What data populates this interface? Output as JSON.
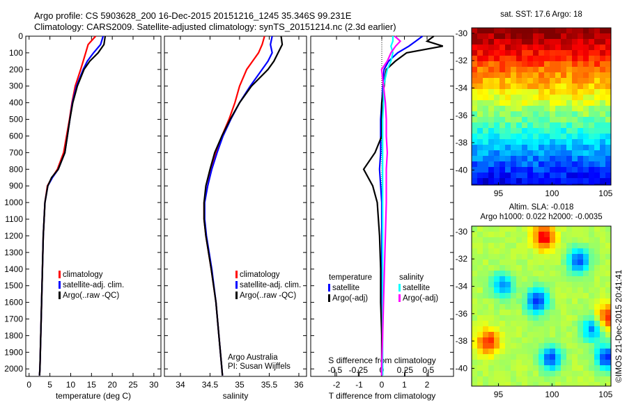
{
  "title_lines": [
    "Argo profile: CS 5903628_200 16-Dec-2015 20151216_1245 35.346S 99.231E",
    "Climatology: CARS2009. Satellite-adjusted climatology: synTS_20151214.nc (2.3d earlier)"
  ],
  "colors": {
    "climatology": "#ff0000",
    "satellite": "#0000ff",
    "argo": "#000000",
    "sal_satellite": "#00ffff",
    "sal_argo": "#ff00ff"
  },
  "chart_data": [
    {
      "type": "line",
      "id": "temperature",
      "xlabel": "temperature (deg C)",
      "xlim": [
        -0.8,
        31.7
      ],
      "ylim": [
        2045,
        0
      ],
      "xticks": [
        0,
        5,
        10,
        15,
        20,
        25,
        30
      ],
      "yticks": [
        0,
        100,
        200,
        300,
        400,
        500,
        600,
        700,
        800,
        900,
        1000,
        1100,
        1200,
        1300,
        1400,
        1500,
        1600,
        1700,
        1800,
        1900,
        2000
      ],
      "depth": [
        0,
        50,
        100,
        150,
        200,
        300,
        400,
        500,
        600,
        700,
        800,
        850,
        900,
        1000,
        1200,
        1400,
        1600,
        1800,
        2000,
        2040
      ],
      "series": [
        {
          "name": "climatology",
          "legend": "climatology",
          "color": "#ff0000",
          "values": [
            16,
            14.2,
            13.6,
            13,
            12.4,
            11.1,
            10.3,
            9.7,
            9.0,
            8.3,
            6.8,
            5.5,
            4.4,
            3.8,
            3.4,
            3.2,
            3.0,
            2.8,
            2.6,
            2.5
          ]
        },
        {
          "name": "satellite",
          "legend": "satellite-adj. clim.",
          "color": "#0000ff",
          "values": [
            17.8,
            17.2,
            15.5,
            14.0,
            13.0,
            11.4,
            10.4,
            9.8,
            9.2,
            8.6,
            7.0,
            5.6,
            4.5,
            3.8,
            3.4,
            3.2,
            3.0,
            2.8,
            2.6,
            2.5
          ]
        },
        {
          "name": "argo",
          "legend": "Argo(..raw -QC)",
          "color": "#000000",
          "values": [
            18.3,
            18.0,
            16.6,
            14.6,
            13.2,
            11.6,
            10.5,
            9.8,
            9.2,
            8.6,
            7.0,
            5.4,
            4.5,
            3.8,
            3.4,
            3.2,
            3.0,
            2.8,
            2.6,
            2.5
          ]
        }
      ]
    },
    {
      "type": "line",
      "id": "salinity",
      "xlabel": "salinity",
      "xlim": [
        33.73,
        36.13
      ],
      "ylim": [
        2045,
        0
      ],
      "xticks": [
        34,
        34.5,
        35,
        35.5,
        36
      ],
      "depth": [
        0,
        50,
        100,
        150,
        200,
        300,
        400,
        500,
        600,
        700,
        800,
        900,
        1000,
        1100,
        1200,
        1400,
        1600,
        1800,
        2000,
        2040
      ],
      "series": [
        {
          "name": "climatology",
          "legend": "climatology",
          "color": "#ff0000",
          "values": [
            35.42,
            35.38,
            35.32,
            35.22,
            35.12,
            35.0,
            34.92,
            34.82,
            34.7,
            34.6,
            34.52,
            34.46,
            34.4,
            34.4,
            34.43,
            34.52,
            34.6,
            34.65,
            34.7,
            34.71
          ]
        },
        {
          "name": "satellite",
          "legend": "satellite-adj. clim.",
          "color": "#0000ff",
          "values": [
            35.55,
            35.52,
            35.55,
            35.48,
            35.38,
            35.18,
            35.0,
            34.85,
            34.72,
            34.62,
            34.53,
            34.46,
            34.41,
            34.41,
            34.44,
            34.53,
            34.6,
            34.65,
            34.7,
            34.71
          ]
        },
        {
          "name": "argo",
          "legend": "Argo(..raw -QC)",
          "color": "#000000",
          "values": [
            35.7,
            35.72,
            35.65,
            35.58,
            35.48,
            35.2,
            35.0,
            34.84,
            34.7,
            34.58,
            34.5,
            34.43,
            34.4,
            34.4,
            34.43,
            34.52,
            34.6,
            34.65,
            34.7,
            34.71
          ]
        }
      ],
      "annotation": [
        "Argo Australia",
        "PI: Susan Wijffels"
      ]
    },
    {
      "type": "line",
      "id": "difference",
      "xlabel": "T difference from climatology",
      "xlabel_top": "S difference from climatology",
      "xlim": [
        -3.14,
        3.17
      ],
      "xticks": [
        -2,
        -1,
        0,
        1,
        2
      ],
      "s_xlim": [
        -0.76,
        0.77
      ],
      "s_xticks": [
        -0.5,
        -0.25,
        0,
        0.25,
        0.5
      ],
      "ylim": [
        2045,
        0
      ],
      "depth": [
        0,
        30,
        60,
        100,
        150,
        200,
        300,
        400,
        500,
        600,
        700,
        800,
        900,
        1000,
        1200,
        1400,
        1600,
        1800,
        2000,
        2040
      ],
      "legend_headers": [
        "temperature",
        "salinity"
      ],
      "series": [
        {
          "name": "t_satellite",
          "legend": "satellite",
          "group": "temperature",
          "color": "#0000ff",
          "scale": "T",
          "values": [
            1.8,
            1.5,
            1.2,
            0.7,
            0.3,
            0.1,
            0.05,
            0.0,
            -0.05,
            -0.05,
            -0.05,
            -0.1,
            -0.05,
            0.0,
            0.0,
            0.0,
            0.0,
            0.0,
            0.0,
            0.0
          ]
        },
        {
          "name": "t_argo",
          "legend": "Argo(-adj)",
          "group": "temperature",
          "color": "#000000",
          "scale": "T",
          "values": [
            2.3,
            2.0,
            2.7,
            1.1,
            0.6,
            0.2,
            0.1,
            0.0,
            0.0,
            0.0,
            -0.3,
            -0.8,
            -0.4,
            -0.2,
            -0.1,
            -0.05,
            -0.05,
            0.0,
            0.0,
            0.0
          ]
        },
        {
          "name": "s_satellite",
          "legend": "satellite",
          "group": "salinity",
          "color": "#00ffff",
          "scale": "S",
          "values": [
            0.12,
            0.12,
            0.1,
            0.12,
            0.1,
            0.06,
            0.02,
            0.02,
            0.01,
            0.01,
            0.01,
            0.01,
            0.01,
            0.01,
            0.01,
            0.01,
            0.01,
            0.01,
            0.01,
            0.01
          ]
        },
        {
          "name": "s_argo",
          "legend": "Argo(-adj)",
          "group": "salinity",
          "color": "#ff00ff",
          "scale": "S",
          "values": [
            0.14,
            0.2,
            0.15,
            0.1,
            0.06,
            0.0,
            0.02,
            0.04,
            0.05,
            0.05,
            0.06,
            0.05,
            0.05,
            0.05,
            0.04,
            0.03,
            0.02,
            0.01,
            0.0,
            0.0
          ]
        }
      ]
    },
    {
      "type": "heatmap",
      "id": "sst_map",
      "title": "sat. SST: 17.6 Argo: 18",
      "xlim": [
        92.5,
        105.5
      ],
      "ylim": [
        -41.1,
        -29.6
      ],
      "xticks": [
        95,
        100,
        105
      ],
      "yticks": [
        -30,
        -32,
        -34,
        -36,
        -38,
        -40
      ],
      "marker": {
        "lon": 99.231,
        "lat": -35.346
      }
    },
    {
      "type": "heatmap",
      "id": "sla_map",
      "title_lines": [
        "Altim. SLA: -0.018",
        "Argo h1000: 0.022 h2000: -0.0035"
      ],
      "xlim": [
        92.5,
        105.5
      ],
      "ylim": [
        -41.3,
        -29.6
      ],
      "xticks": [
        95,
        100,
        105
      ],
      "yticks": [
        -30,
        -32,
        -34,
        -36,
        -38,
        -40
      ]
    }
  ],
  "footer_stamp": "©IMOS 21-Dec-2015 20:41:41"
}
